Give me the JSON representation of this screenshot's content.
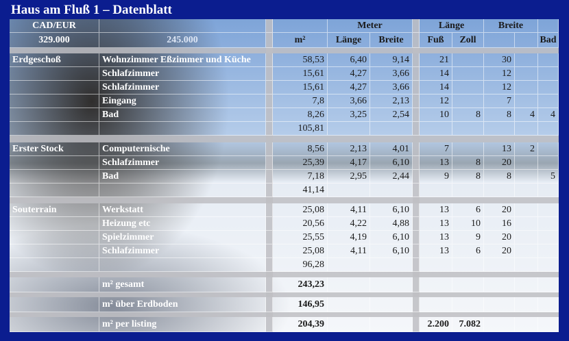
{
  "title": "Haus am Fluß 1 – Datenblatt",
  "rows": [
    [
      "CAD/EUR",
      null,
      null,
      null,
      "Meter",
      null,
      null,
      "Länge",
      null,
      "Breite",
      null,
      null
    ],
    [
      "329.000",
      "245.000",
      null,
      "m²",
      "Länge",
      "Breite",
      null,
      "Fuß",
      "Zoll",
      null,
      null,
      "Bad"
    ],
    [
      "Erdgeschoß",
      "Wohnzimmer Eßzimmer und Küche",
      null,
      "58,53",
      "6,40",
      "9,14",
      null,
      "21",
      null,
      "30",
      null,
      null
    ],
    [
      null,
      "Schlafzimmer",
      null,
      "15,61",
      "4,27",
      "3,66",
      null,
      "14",
      null,
      "12",
      null,
      null
    ],
    [
      null,
      "Schlafzimmer",
      null,
      "15,61",
      "4,27",
      "3,66",
      null,
      "14",
      null,
      "12",
      null,
      null
    ],
    [
      null,
      "Eingang",
      null,
      "7,8",
      "3,66",
      "2,13",
      null,
      "12",
      null,
      "7",
      null,
      null
    ],
    [
      null,
      "Bad",
      null,
      "8,26",
      "3,25",
      "2,54",
      null,
      "10",
      "8",
      "8",
      "4",
      "4"
    ],
    [
      null,
      null,
      null,
      "105,81",
      null,
      null,
      null,
      null,
      null,
      null,
      null,
      null
    ],
    [
      "Erster Stock",
      "Computernische",
      null,
      "8,56",
      "2,13",
      "4,01",
      null,
      "7",
      null,
      "13",
      "2",
      null
    ],
    [
      null,
      "Schlafzimmer",
      null,
      "25,39",
      "4,17",
      "6,10",
      null,
      "13",
      "8",
      "20",
      null,
      null
    ],
    [
      null,
      "Bad",
      null,
      "7,18",
      "2,95",
      "2,44",
      null,
      "9",
      "8",
      "8",
      null,
      "5"
    ],
    [
      null,
      null,
      null,
      "41,14",
      null,
      null,
      null,
      null,
      null,
      null,
      null,
      null
    ],
    [
      "Souterrain",
      "Werkstatt",
      null,
      "25,08",
      "4,11",
      "6,10",
      null,
      "13",
      "6",
      "20",
      null,
      null
    ],
    [
      null,
      "Heizung etc",
      null,
      "20,56",
      "4,22",
      "4,88",
      null,
      "13",
      "10",
      "16",
      null,
      null
    ],
    [
      null,
      "Spielzimmer",
      null,
      "25,55",
      "4,19",
      "6,10",
      null,
      "13",
      "9",
      "20",
      null,
      null
    ],
    [
      null,
      "Schlafzimmer",
      null,
      "25,08",
      "4,11",
      "6,10",
      null,
      "13",
      "6",
      "20",
      null,
      null
    ],
    [
      null,
      null,
      null,
      "96,28",
      null,
      null,
      null,
      null,
      null,
      null,
      null,
      null
    ],
    [
      null,
      "m² gesamt",
      null,
      "243,23",
      null,
      null,
      null,
      null,
      null,
      null,
      null,
      null
    ],
    [
      null,
      "m² über Erdboden",
      null,
      "146,95",
      null,
      null,
      null,
      null,
      null,
      null,
      null,
      null
    ],
    [
      null,
      "m² per listing",
      null,
      "204,39",
      null,
      null,
      null,
      "2.200",
      "7.082",
      null,
      null,
      null
    ]
  ]
}
